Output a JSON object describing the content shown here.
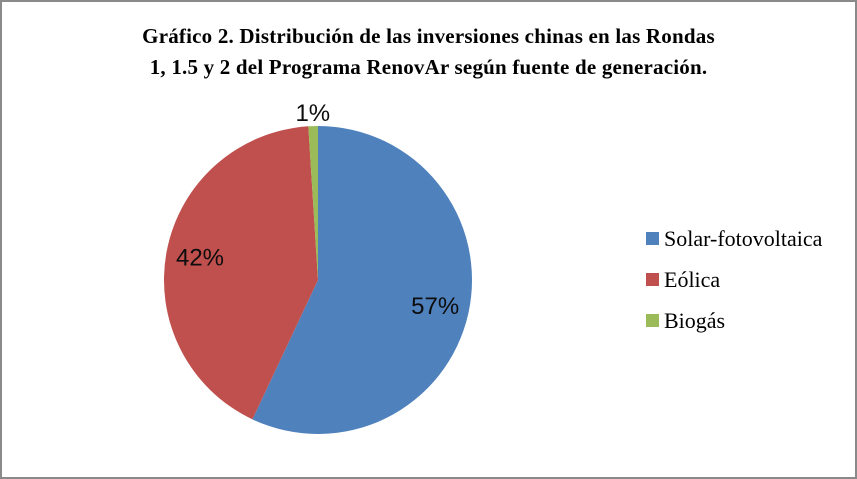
{
  "frame": {
    "background": "#ffffff",
    "border_color": "#8a8a8a"
  },
  "title": {
    "line1": "Gráfico 2. Distribución de las inversiones chinas en las Rondas",
    "line2": "1, 1.5 y 2 del Programa RenovAr según fuente de generación."
  },
  "chart_data": {
    "type": "pie",
    "title": "Gráfico 2. Distribución de las inversiones chinas en las Rondas 1, 1.5 y 2 del Programa RenovAr según fuente de generación.",
    "unit": "percent",
    "start_angle_deg": 0,
    "direction": "clockwise",
    "legend_position": "right",
    "slices": [
      {
        "name": "Solar-fotovoltaica",
        "value": 57,
        "label": "57%",
        "color": "#4F81BD",
        "label_placement": "inside"
      },
      {
        "name": "Eólica",
        "value": 42,
        "label": "42%",
        "color": "#C0504D",
        "label_placement": "inside"
      },
      {
        "name": "Biogás",
        "value": 1,
        "label": "1%",
        "color": "#9BBB59",
        "label_placement": "outside"
      }
    ]
  }
}
